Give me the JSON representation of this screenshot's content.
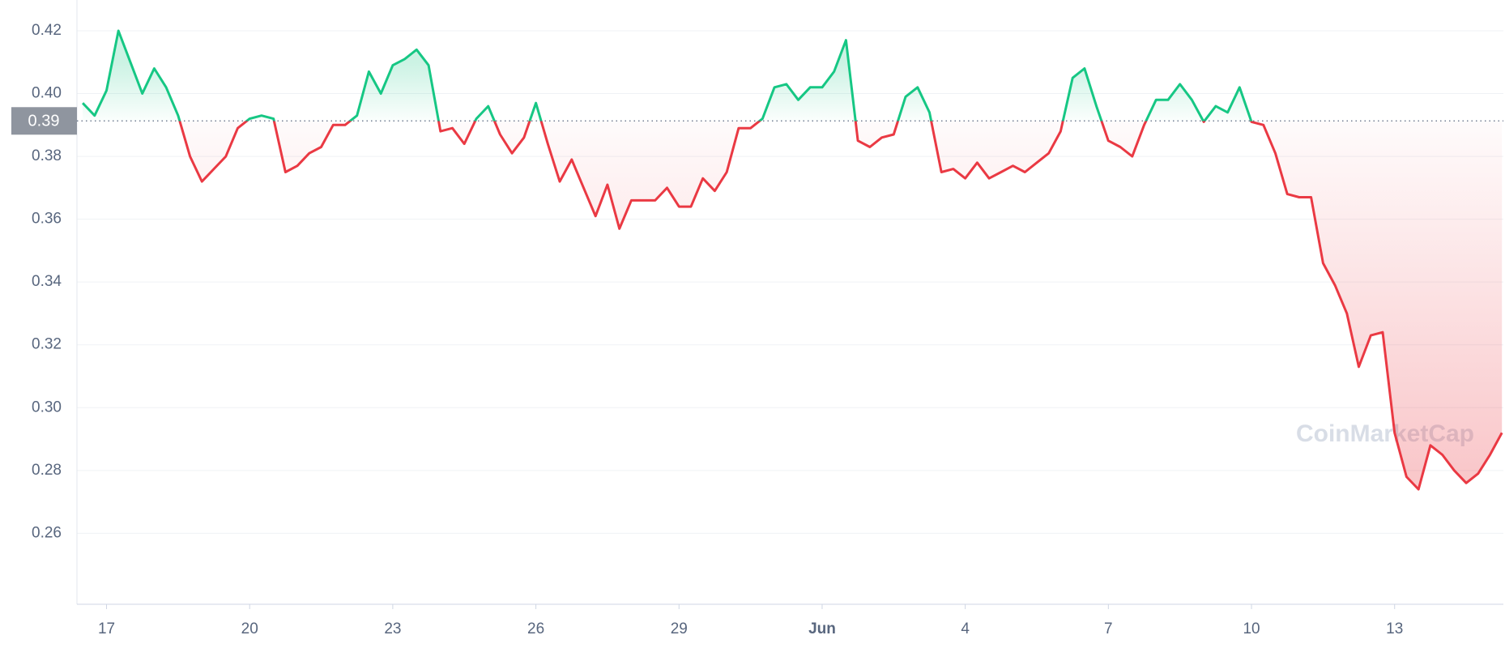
{
  "chart_data": {
    "type": "line",
    "x": [
      16.5,
      16.75,
      17,
      17.25,
      17.5,
      17.75,
      18,
      18.25,
      18.5,
      18.75,
      19,
      19.25,
      19.5,
      19.75,
      20,
      20.25,
      20.5,
      20.75,
      21,
      21.25,
      21.5,
      21.75,
      22,
      22.25,
      22.5,
      22.75,
      23,
      23.25,
      23.5,
      23.75,
      24,
      24.25,
      24.5,
      24.75,
      25,
      25.25,
      25.5,
      25.75,
      26,
      26.25,
      26.5,
      26.75,
      27,
      27.25,
      27.5,
      27.75,
      28,
      28.25,
      28.5,
      28.75,
      29,
      29.25,
      29.5,
      29.75,
      30,
      30.25,
      30.5,
      30.75,
      31,
      31.25,
      31.5,
      31.75,
      32,
      32.25,
      32.5,
      32.75,
      33,
      33.25,
      33.5,
      33.75,
      34,
      34.25,
      34.5,
      34.75,
      35,
      35.25,
      35.5,
      35.75,
      36,
      36.25,
      36.5,
      36.75,
      37,
      37.25,
      37.5,
      37.75,
      38,
      38.25,
      38.5,
      38.75,
      39,
      39.25,
      39.5,
      39.75,
      40,
      40.25,
      40.5,
      40.75,
      41,
      41.25,
      41.5,
      41.75,
      42,
      42.25,
      42.5,
      42.75,
      43,
      43.25,
      43.5,
      43.75,
      44,
      44.25,
      44.5,
      44.75,
      45,
      45.25,
      45.5,
      45.75,
      46,
      46.25
    ],
    "values": [
      0.397,
      0.393,
      0.401,
      0.42,
      0.41,
      0.4,
      0.408,
      0.402,
      0.393,
      0.38,
      0.372,
      0.376,
      0.38,
      0.389,
      0.392,
      0.393,
      0.392,
      0.375,
      0.377,
      0.381,
      0.383,
      0.39,
      0.39,
      0.393,
      0.407,
      0.4,
      0.409,
      0.411,
      0.414,
      0.409,
      0.388,
      0.389,
      0.384,
      0.392,
      0.396,
      0.387,
      0.381,
      0.386,
      0.397,
      0.384,
      0.372,
      0.379,
      0.37,
      0.361,
      0.371,
      0.357,
      0.366,
      0.366,
      0.366,
      0.37,
      0.364,
      0.364,
      0.373,
      0.369,
      0.375,
      0.389,
      0.389,
      0.392,
      0.402,
      0.403,
      0.398,
      0.402,
      0.402,
      0.407,
      0.417,
      0.385,
      0.383,
      0.386,
      0.387,
      0.399,
      0.402,
      0.394,
      0.375,
      0.376,
      0.373,
      0.378,
      0.373,
      0.375,
      0.377,
      0.375,
      0.378,
      0.381,
      0.388,
      0.405,
      0.408,
      0.396,
      0.385,
      0.383,
      0.38,
      0.39,
      0.398,
      0.398,
      0.403,
      0.398,
      0.391,
      0.396,
      0.394,
      0.402,
      0.391,
      0.39,
      0.381,
      0.368,
      0.367,
      0.367,
      0.346,
      0.339,
      0.33,
      0.313,
      0.323,
      0.324,
      0.292,
      0.278,
      0.274,
      0.288,
      0.285,
      0.28,
      0.276,
      0.279,
      0.285,
      0.292
    ],
    "up_color": "#16c784",
    "down_color": "#ea3943",
    "baseline": {
      "value": 0.3913,
      "label": "0.39"
    },
    "xlim": [
      16.38,
      46.28
    ],
    "xticks": [
      17,
      20,
      23,
      26,
      29,
      {
        "value": 32,
        "label": "Jun"
      },
      {
        "value": 35,
        "label": "4"
      },
      {
        "value": 38,
        "label": "7"
      },
      {
        "value": 41,
        "label": "10"
      },
      {
        "value": 44,
        "label": "13"
      }
    ],
    "ylim": [
      0.2374,
      0.4298
    ],
    "yticks": [
      0.26,
      0.28,
      {
        "value": 0.3,
        "label": "0.30"
      },
      0.32,
      0.34,
      0.36,
      0.38,
      {
        "value": 0.4,
        "label": "0.40"
      },
      0.42
    ],
    "grid": true,
    "watermark": "CoinMarketCap"
  }
}
